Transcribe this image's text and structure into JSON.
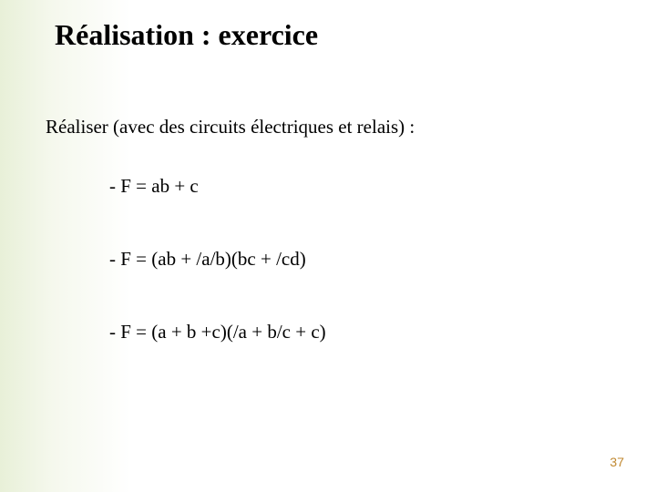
{
  "title": "Réalisation : exercice",
  "prompt": "Réaliser (avec des circuits électriques et relais) :",
  "equations": [
    "- F = ab + c",
    "- F = (ab + /a/b)(bc + /cd)",
    "- F = (a + b +c)(/a + b/c + c)"
  ],
  "page_number": "37",
  "colors": {
    "gradient_start": "#e8f0d8",
    "gradient_mid": "#f5f8ed",
    "background": "#ffffff",
    "text": "#000000",
    "page_num": "#c08830"
  },
  "typography": {
    "title_fontsize": 32,
    "body_fontsize": 21,
    "page_num_fontsize": 14,
    "font_family": "Times New Roman"
  }
}
